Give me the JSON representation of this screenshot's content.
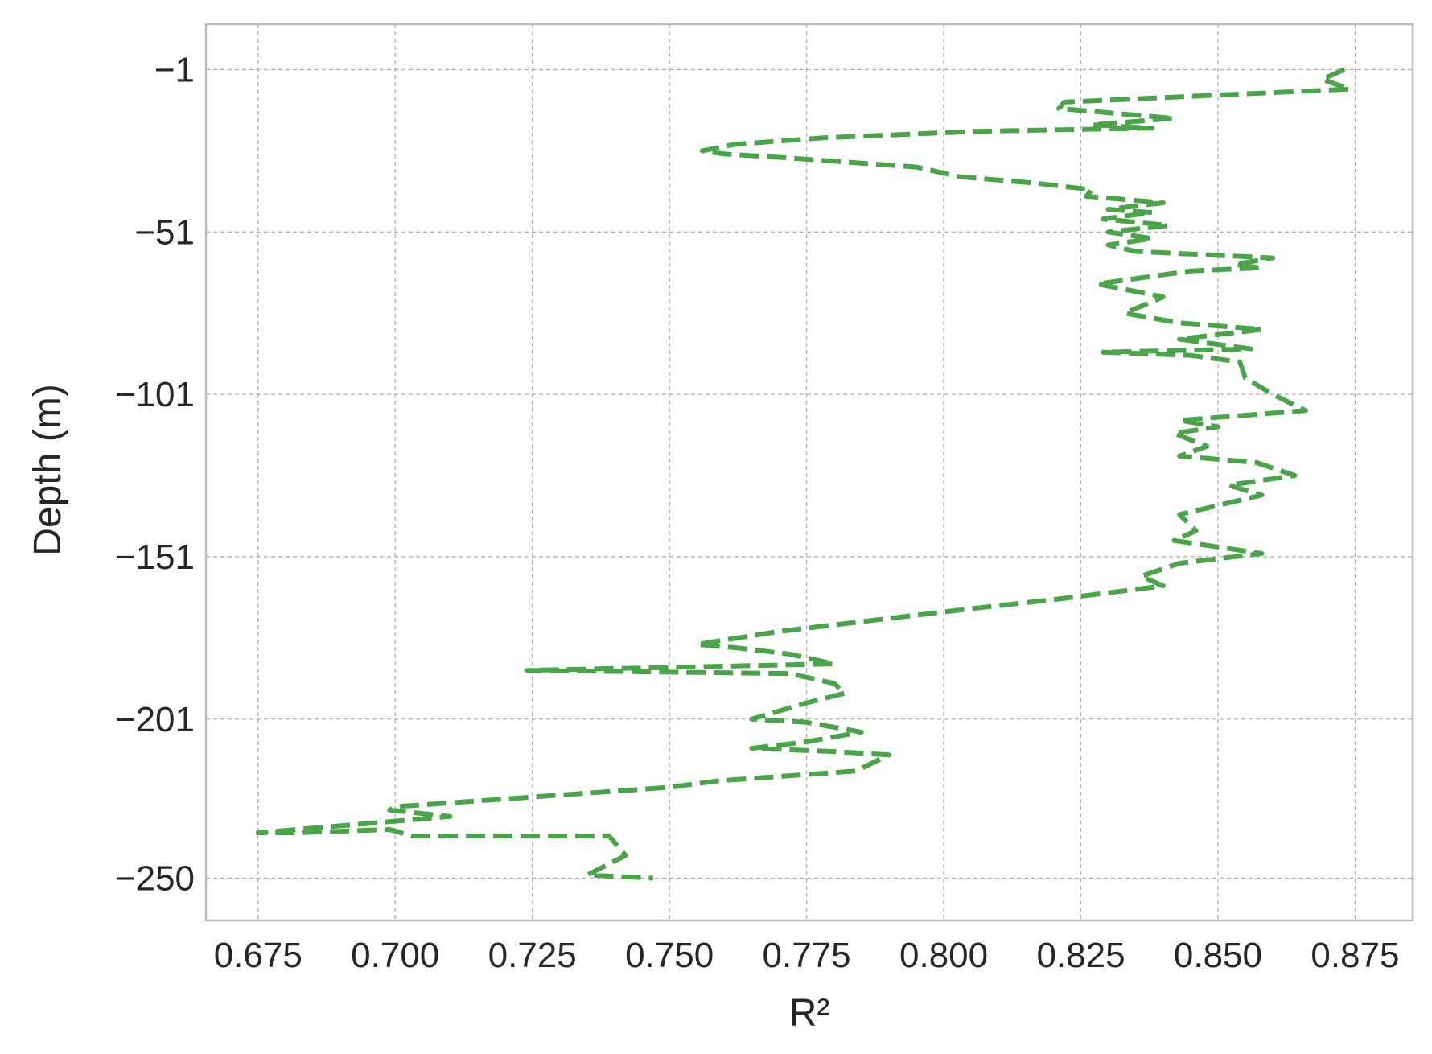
{
  "chart_data": {
    "type": "line",
    "title": "",
    "xlabel": "R²",
    "ylabel": "Depth (m)",
    "xlim": [
      0.6655,
      0.8855
    ],
    "ylim": [
      -263,
      13
    ],
    "x_ticks": [
      0.675,
      0.7,
      0.725,
      0.75,
      0.775,
      0.8,
      0.825,
      0.85,
      0.875
    ],
    "x_tick_labels": [
      "0.675",
      "0.700",
      "0.725",
      "0.750",
      "0.775",
      "0.800",
      "0.825",
      "0.850",
      "0.875"
    ],
    "y_ticks": [
      -1,
      -51,
      -101,
      -151,
      -201,
      -250
    ],
    "y_tick_labels": [
      "−1",
      "−51",
      "−101",
      "−151",
      "−201",
      "−250"
    ],
    "grid": true,
    "legend": "none",
    "series": [
      {
        "color": "#4aa54a",
        "line_style": "dashed",
        "x": [
          0.873,
          0.869,
          0.874,
          0.822,
          0.821,
          0.842,
          0.827,
          0.838,
          0.806,
          0.778,
          0.762,
          0.756,
          0.76,
          0.77,
          0.795,
          0.803,
          0.817,
          0.827,
          0.826,
          0.84,
          0.83,
          0.838,
          0.829,
          0.841,
          0.83,
          0.838,
          0.83,
          0.835,
          0.86,
          0.853,
          0.858,
          0.845,
          0.828,
          0.84,
          0.833,
          0.843,
          0.858,
          0.843,
          0.856,
          0.829,
          0.845,
          0.854,
          0.855,
          0.86,
          0.866,
          0.843,
          0.85,
          0.842,
          0.848,
          0.843,
          0.857,
          0.864,
          0.852,
          0.858,
          0.843,
          0.846,
          0.842,
          0.85,
          0.858,
          0.843,
          0.836,
          0.84,
          0.821,
          0.805,
          0.795,
          0.77,
          0.755,
          0.762,
          0.772,
          0.78,
          0.724,
          0.772,
          0.78,
          0.782,
          0.775,
          0.765,
          0.775,
          0.785,
          0.775,
          0.765,
          0.78,
          0.79,
          0.784,
          0.759,
          0.75,
          0.7,
          0.699,
          0.71,
          0.675,
          0.682,
          0.699,
          0.703,
          0.739,
          0.742,
          0.735,
          0.747
        ],
        "y": [
          -1,
          -4,
          -7,
          -11,
          -13,
          -16,
          -18,
          -19,
          -20,
          -22,
          -24,
          -26,
          -27,
          -28,
          -31,
          -34,
          -36,
          -38,
          -40,
          -42,
          -44,
          -45,
          -47,
          -49,
          -51,
          -53,
          -55,
          -57,
          -59,
          -61,
          -62,
          -63,
          -67,
          -71,
          -76,
          -79,
          -81,
          -84,
          -87,
          -88,
          -89,
          -91,
          -96,
          -101,
          -106,
          -109,
          -111,
          -113,
          -117,
          -120,
          -122,
          -126,
          -129,
          -132,
          -138,
          -143,
          -146,
          -148,
          -150,
          -153,
          -157,
          -160,
          -164,
          -167,
          -169,
          -174,
          -178,
          -179,
          -181,
          -184,
          -186,
          -187,
          -190,
          -193,
          -196,
          -201,
          -202,
          -205,
          -208,
          -210,
          -211,
          -212,
          -217,
          -220,
          -222,
          -228,
          -229,
          -231,
          -236,
          -236,
          -235,
          -237,
          -237,
          -243,
          -249,
          -250
        ]
      }
    ]
  }
}
